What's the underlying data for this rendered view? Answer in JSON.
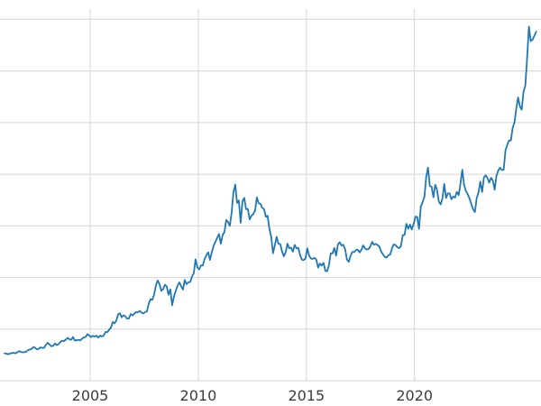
{
  "figure": {
    "background": "#ffffff"
  },
  "chart_data": {
    "type": "line",
    "title": "",
    "xlabel": "",
    "ylabel": "",
    "grid": true,
    "grid_color": "#d4d4d4",
    "tick_label_color": "#3d3d3d",
    "legend": "none",
    "xlim": [
      2000.83,
      2025.85
    ],
    "ylim": [
      0,
      3600
    ],
    "x_ticks": [
      {
        "value": 2005,
        "label": "2005"
      },
      {
        "value": 2010,
        "label": "2010"
      },
      {
        "value": 2015,
        "label": "2015"
      },
      {
        "value": 2020,
        "label": "2020"
      }
    ],
    "y_gridlines": [
      0,
      500,
      1000,
      1500,
      2000,
      2500,
      3000,
      3500
    ],
    "series": [
      {
        "color": "#1f77b4",
        "line_width": 1.8,
        "start_year": 2001,
        "points_per_year": 12,
        "values": [
          266,
          262,
          257,
          263,
          267,
          271,
          266,
          274,
          287,
          280,
          275,
          277,
          282,
          297,
          302,
          309,
          327,
          319,
          303,
          310,
          323,
          317,
          320,
          348,
          368,
          350,
          335,
          337,
          361,
          346,
          355,
          376,
          388,
          384,
          398,
          415,
          402,
          396,
          424,
          388,
          394,
          395,
          391,
          407,
          419,
          425,
          452,
          438,
          423,
          435,
          428,
          436,
          418,
          437,
          429,
          437,
          473,
          470,
          494,
          513,
          568,
          556,
          582,
          644,
          653,
          613,
          634,
          624,
          599,
          604,
          647,
          632,
          651,
          665,
          662,
          677,
          660,
          651,
          666,
          672,
          743,
          790,
          784,
          834,
          923,
          972,
          934,
          871,
          886,
          930,
          913,
          833,
          885,
          731,
          815,
          870,
          920,
          952,
          917,
          883,
          976,
          935,
          954,
          956,
          1008,
          1040,
          1176,
          1096,
          1079,
          1118,
          1116,
          1180,
          1215,
          1244,
          1170,
          1246,
          1307,
          1346,
          1384,
          1421,
          1327,
          1412,
          1439,
          1557,
          1536,
          1501,
          1628,
          1827,
          1900,
          1722,
          1746,
          1531,
          1737,
          1771,
          1662,
          1664,
          1562,
          1598,
          1615,
          1649,
          1776,
          1719,
          1715,
          1676,
          1664,
          1588,
          1598,
          1469,
          1394,
          1235,
          1312,
          1395,
          1327,
          1324,
          1253,
          1206,
          1244,
          1326,
          1284,
          1289,
          1250,
          1315,
          1282,
          1287,
          1217,
          1173,
          1167,
          1184,
          1283,
          1213,
          1184,
          1180,
          1190,
          1172,
          1096,
          1135,
          1115,
          1142,
          1065,
          1061,
          1118,
          1234,
          1233,
          1286,
          1212,
          1321,
          1342,
          1310,
          1317,
          1272,
          1174,
          1152,
          1211,
          1248,
          1245,
          1267,
          1269,
          1242,
          1268,
          1311,
          1281,
          1271,
          1275,
          1303,
          1345,
          1318,
          1325,
          1315,
          1300,
          1252,
          1224,
          1201,
          1192,
          1215,
          1221,
          1282,
          1321,
          1313,
          1292,
          1284,
          1306,
          1410,
          1414,
          1520,
          1472,
          1513,
          1464,
          1517,
          1589,
          1586,
          1471,
          1687,
          1730,
          1781,
          1976,
          2063,
          1886,
          1879,
          1777,
          1898,
          1848,
          1734,
          1708,
          1768,
          1907,
          1770,
          1814,
          1814,
          1757,
          1783,
          1775,
          1829,
          1797,
          1909,
          2043,
          1897,
          1837,
          1807,
          1766,
          1711,
          1661,
          1634,
          1769,
          1824,
          1928,
          1827,
          1969,
          1990,
          1963,
          1919,
          1965,
          1940,
          1849,
          1984,
          2036,
          2063,
          2040,
          2044,
          2230,
          2286,
          2327,
          2327,
          2448,
          2503,
          2635,
          2744,
          2657,
          2625,
          2798,
          2858,
          3124,
          3430,
          3289,
          3303,
          3340,
          3380
        ]
      }
    ]
  }
}
